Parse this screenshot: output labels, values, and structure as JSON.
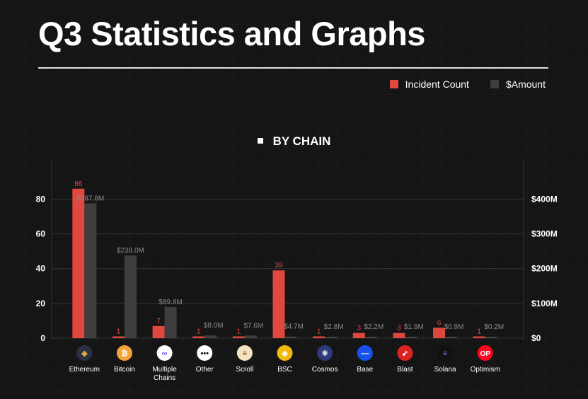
{
  "title": "Q3 Statistics and Graphs",
  "chart_data": {
    "type": "bar",
    "title": "BY CHAIN",
    "categories": [
      "Ethereum",
      "Bitcoin",
      "Multiple Chains",
      "Other",
      "Scroll",
      "BSC",
      "Cosmos",
      "Base",
      "Blast",
      "Solana",
      "Optimism"
    ],
    "category_icons": [
      "ethereum-icon",
      "bitcoin-icon",
      "multiple-chains-icon",
      "other-icon",
      "scroll-icon",
      "bsc-icon",
      "cosmos-icon",
      "base-icon",
      "blast-icon",
      "solana-icon",
      "optimism-icon"
    ],
    "series": [
      {
        "name": "Incident Count",
        "color": "#e0473f",
        "axis": "left",
        "values": [
          86,
          1,
          7,
          1,
          1,
          39,
          1,
          3,
          3,
          6,
          1
        ],
        "labels": [
          "86",
          "1",
          "7",
          "1",
          "1",
          "39",
          "1",
          "3",
          "3",
          "6",
          "1"
        ]
      },
      {
        "name": "$Amount",
        "color": "#3e3e3e",
        "axis": "right",
        "values": [
          387.8,
          238.0,
          89.8,
          8.0,
          7.6,
          4.7,
          2.8,
          2.2,
          1.9,
          0.9,
          0.2
        ],
        "labels": [
          "$387.8M",
          "$238.0M",
          "$89.8M",
          "$8.0M",
          "$7.6M",
          "$4.7M",
          "$2.8M",
          "$2.2M",
          "$1.9M",
          "$0.9M",
          "$0.2M"
        ]
      }
    ],
    "y_left": {
      "ticks": [
        0,
        20,
        40,
        60,
        80
      ],
      "tick_labels": [
        "0",
        "20",
        "40",
        "60",
        "80"
      ],
      "ylim": [
        0,
        103
      ]
    },
    "y_right": {
      "ticks": [
        0,
        100,
        200,
        300,
        400
      ],
      "tick_labels": [
        "$0",
        "$100M",
        "$200M",
        "$300M",
        "$400M"
      ],
      "ylim": [
        0,
        515
      ]
    },
    "grid": true,
    "legend": "top-right"
  }
}
